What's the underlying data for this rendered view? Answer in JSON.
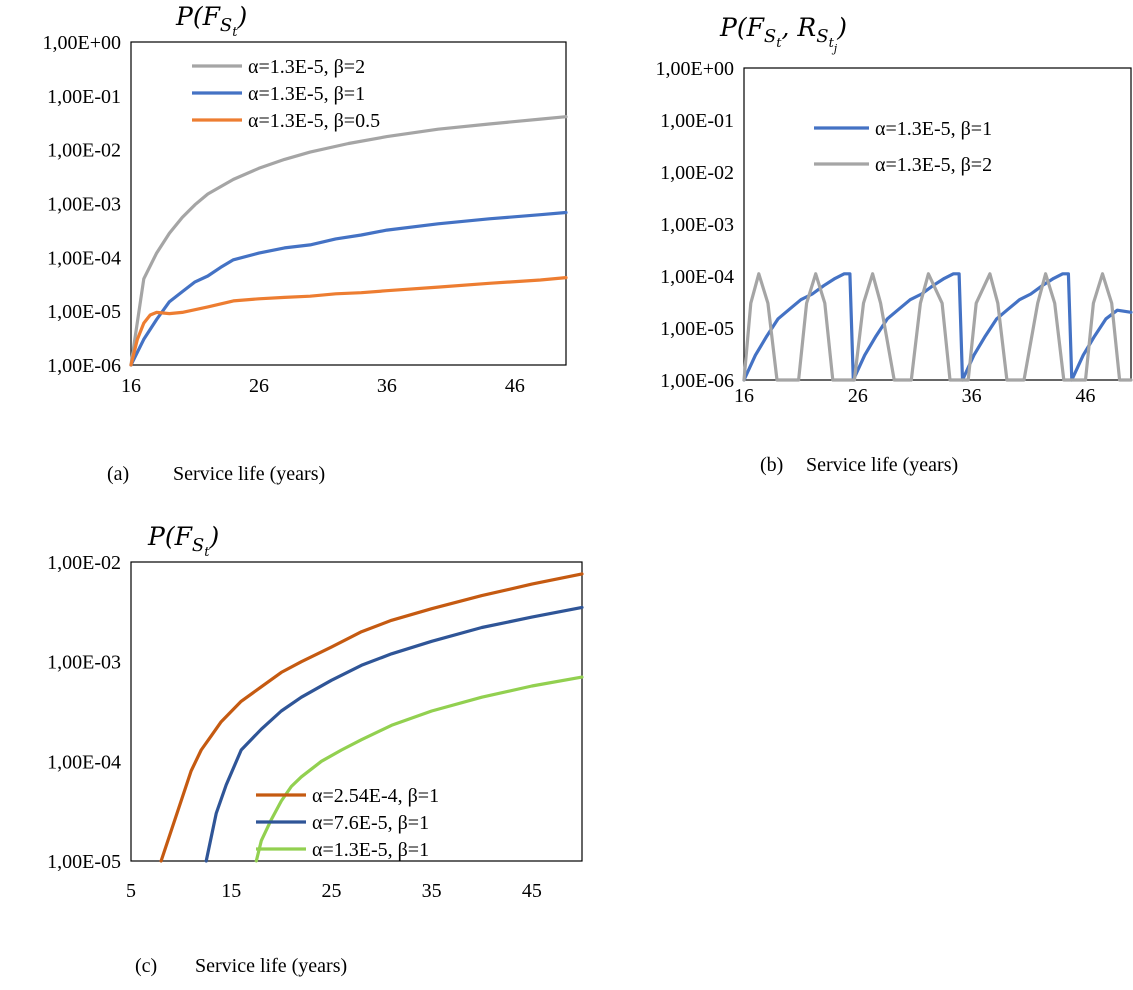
{
  "chart_data": [
    {
      "id": "a",
      "type": "line",
      "ylabel_main": "P(F",
      "ylabel_sub": "S",
      "ylabel_subsub": "t",
      "ylabel_close": ")",
      "xlabel_marker": "(a)",
      "xlabel": "Service life (years)",
      "y_scale": "log",
      "ylim": [
        1e-06,
        1
      ],
      "xlim": [
        16,
        50
      ],
      "y_ticks": [
        "1,00E+00",
        "1,00E-01",
        "1,00E-02",
        "1,00E-03",
        "1,00E-04",
        "1,00E-05",
        "1,00E-06"
      ],
      "x_ticks": [
        "16",
        "26",
        "36",
        "46"
      ],
      "legend_position": "top-left",
      "series": [
        {
          "name": "α=1.3E-5, β=2",
          "color": "#A5A5A5",
          "x": [
            16,
            17,
            18,
            19,
            20,
            21,
            22,
            24,
            26,
            28,
            30,
            33,
            36,
            40,
            44,
            48,
            50
          ],
          "y": [
            1e-06,
            4e-05,
            0.00012,
            0.00028,
            0.00055,
            0.00095,
            0.0015,
            0.0028,
            0.0045,
            0.0066,
            0.009,
            0.013,
            0.0175,
            0.024,
            0.03,
            0.037,
            0.041
          ]
        },
        {
          "name": "α=1.3E-5, β=1",
          "color": "#4472C4",
          "x": [
            16,
            17,
            18,
            19,
            20,
            21,
            22,
            23,
            24,
            26,
            28,
            30,
            32,
            34,
            36,
            40,
            44,
            48,
            50
          ],
          "y": [
            1e-06,
            3e-06,
            7e-06,
            1.5e-05,
            2.3e-05,
            3.5e-05,
            4.5e-05,
            6.5e-05,
            9e-05,
            0.00012,
            0.00015,
            0.00017,
            0.00022,
            0.00026,
            0.00032,
            0.00042,
            0.00052,
            0.00062,
            0.00068
          ]
        },
        {
          "name": "α=1.3E-5, β=0.5",
          "color": "#ED7D31",
          "x": [
            16,
            16.5,
            17,
            17.5,
            18,
            19,
            20,
            22,
            24,
            26,
            28,
            30,
            32,
            34,
            36,
            40,
            44,
            48,
            50
          ],
          "y": [
            1e-06,
            3e-06,
            6e-06,
            8.5e-06,
            9.5e-06,
            9e-06,
            9.5e-06,
            1.2e-05,
            1.55e-05,
            1.7e-05,
            1.8e-05,
            1.9e-05,
            2.1e-05,
            2.2e-05,
            2.4e-05,
            2.8e-05,
            3.3e-05,
            3.8e-05,
            4.2e-05
          ]
        }
      ]
    },
    {
      "id": "b",
      "type": "line",
      "ylabel_main": "P(F",
      "ylabel_sub": "S",
      "ylabel_subsub": "t",
      "ylabel_mid": ", R",
      "ylabel_sub2": "S",
      "ylabel_subsub2": "t",
      "ylabel_subsubsub2": "j",
      "ylabel_close": ")",
      "xlabel_marker": "(b)",
      "xlabel": "Service life (years)",
      "y_scale": "log",
      "ylim": [
        1e-06,
        1
      ],
      "xlim": [
        16,
        50
      ],
      "y_ticks": [
        "1,00E+00",
        "1,00E-01",
        "1,00E-02",
        "1,00E-03",
        "1,00E-04",
        "1,00E-05",
        "1,00E-06"
      ],
      "x_ticks": [
        "16",
        "26",
        "36",
        "46"
      ],
      "legend_position": "top-right",
      "series": [
        {
          "name": "α=1.3E-5, β=1",
          "color": "#4472C4",
          "x": [
            16,
            17,
            18,
            19,
            20,
            21,
            22,
            23,
            24,
            24.8,
            25.3,
            25.6,
            26.6,
            27.6,
            28.6,
            29.6,
            30.6,
            31.6,
            32.6,
            33.6,
            34.4,
            34.9,
            35.2,
            36.2,
            37.2,
            38.2,
            39.2,
            40.2,
            41.2,
            42.2,
            43.2,
            44.0,
            44.5,
            44.8,
            45.8,
            46.8,
            47.8,
            48.8,
            50
          ],
          "y": [
            1e-06,
            3e-06,
            7e-06,
            1.5e-05,
            2.3e-05,
            3.5e-05,
            4.5e-05,
            6.5e-05,
            9e-05,
            0.00011,
            0.00011,
            1e-06,
            3e-06,
            7e-06,
            1.5e-05,
            2.3e-05,
            3.5e-05,
            4.5e-05,
            6.5e-05,
            9e-05,
            0.00011,
            0.00011,
            1e-06,
            3e-06,
            7e-06,
            1.5e-05,
            2.3e-05,
            3.5e-05,
            4.5e-05,
            6.5e-05,
            9e-05,
            0.00011,
            0.00011,
            1e-06,
            3e-06,
            7e-06,
            1.5e-05,
            2.2e-05,
            2e-05
          ]
        },
        {
          "name": "α=1.3E-5, β=2",
          "color": "#A5A5A5",
          "x": [
            16,
            16.6,
            17.3,
            18.1,
            18.9,
            19.6,
            20.8,
            21.5,
            22.3,
            23.1,
            23.8,
            25.0,
            25.7,
            26.5,
            27.3,
            28.0,
            29.2,
            29.9,
            30.7,
            31.5,
            32.2,
            33.4,
            34.1,
            34.9,
            35.7,
            36.4,
            37.6,
            38.3,
            39.1,
            39.9,
            40.6,
            41.8,
            42.5,
            43.3,
            44.1,
            44.8,
            46.0,
            46.7,
            47.5,
            48.3,
            49.0,
            50
          ],
          "y": [
            1e-06,
            3e-05,
            0.00011,
            3e-05,
            1e-06,
            1e-06,
            1e-06,
            3e-05,
            0.00011,
            3e-05,
            1e-06,
            1e-06,
            1e-06,
            3e-05,
            0.00011,
            3e-05,
            1e-06,
            1e-06,
            1e-06,
            3e-05,
            0.00011,
            3e-05,
            1e-06,
            1e-06,
            1e-06,
            3e-05,
            0.00011,
            3e-05,
            1e-06,
            1e-06,
            1e-06,
            3e-05,
            0.00011,
            3e-05,
            1e-06,
            1e-06,
            1e-06,
            3e-05,
            0.00011,
            3e-05,
            1e-06,
            1e-06
          ]
        }
      ]
    },
    {
      "id": "c",
      "type": "line",
      "ylabel_main": "P(F",
      "ylabel_sub": "S",
      "ylabel_subsub": "t",
      "ylabel_close": ")",
      "xlabel_marker": "(c)",
      "xlabel": "Service life (years)",
      "y_scale": "log",
      "ylim": [
        1e-05,
        0.01
      ],
      "xlim": [
        5,
        50
      ],
      "y_ticks": [
        "1,00E-02",
        "1,00E-03",
        "1,00E-04",
        "1,00E-05"
      ],
      "x_ticks": [
        "5",
        "15",
        "25",
        "35",
        "45"
      ],
      "legend_position": "bottom-right",
      "series": [
        {
          "name": "α=2.54E-4, β=1",
          "color": "#C55A11",
          "x": [
            8,
            9,
            10,
            11,
            12,
            13,
            14,
            16,
            18,
            20,
            22,
            25,
            28,
            31,
            35,
            40,
            45,
            50
          ],
          "y": [
            1e-05,
            2e-05,
            4e-05,
            8e-05,
            0.00013,
            0.00018,
            0.00025,
            0.0004,
            0.00056,
            0.00078,
            0.001,
            0.0014,
            0.002,
            0.0026,
            0.0034,
            0.0046,
            0.006,
            0.0076
          ]
        },
        {
          "name": "α=7.6E-5, β=1",
          "color": "#2F5597",
          "x": [
            12.5,
            13.5,
            14.5,
            16,
            18,
            20,
            22,
            25,
            28,
            31,
            35,
            40,
            45,
            50
          ],
          "y": [
            1e-05,
            3e-05,
            5.8e-05,
            0.00013,
            0.00021,
            0.00032,
            0.00044,
            0.00065,
            0.00092,
            0.0012,
            0.0016,
            0.0022,
            0.0028,
            0.0035
          ]
        },
        {
          "name": "α=1.3E-5, β=1",
          "color": "#92D050",
          "x": [
            17.5,
            18,
            19,
            20,
            21,
            22,
            24,
            26,
            28,
            31,
            35,
            40,
            45,
            50
          ],
          "y": [
            1e-05,
            1.6e-05,
            2.6e-05,
            4e-05,
            5.6e-05,
            7e-05,
            0.0001,
            0.00013,
            0.000165,
            0.00023,
            0.00032,
            0.00044,
            0.00057,
            0.0007
          ]
        }
      ]
    }
  ]
}
